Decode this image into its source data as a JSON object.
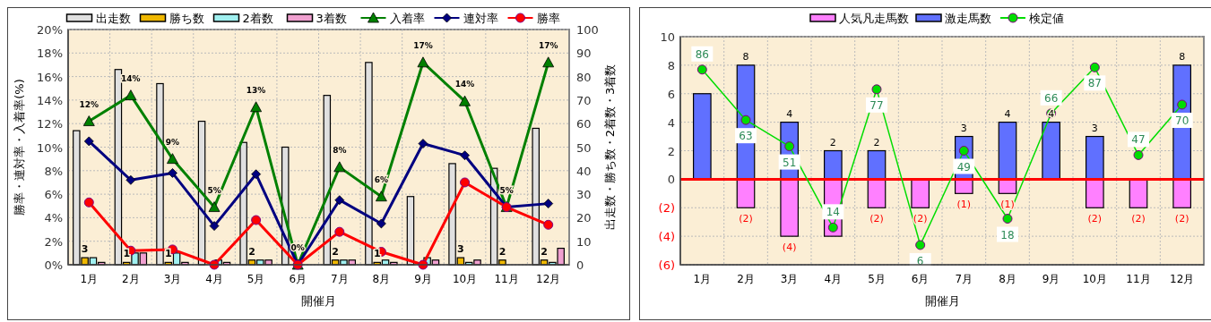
{
  "chart_data": [
    {
      "type": "bar",
      "xlabel": "開催月",
      "ylabel": "勝率・連対率・入着率(%)",
      "y2label": "出走数・勝ち数・2着数・3着数",
      "categories": [
        "1月",
        "2月",
        "3月",
        "4月",
        "5月",
        "6月",
        "7月",
        "8月",
        "9月",
        "10月",
        "11月",
        "12月"
      ],
      "series": [
        {
          "name": "出走数",
          "axis": "y2",
          "color": "#e0e0e0",
          "values": [
            57,
            83,
            77,
            61,
            52,
            50,
            72,
            86,
            29,
            43,
            41,
            58
          ]
        },
        {
          "name": "勝ち数",
          "axis": "y2",
          "color": "#f0b800",
          "values": [
            3,
            1,
            1,
            0,
            2,
            0,
            2,
            1,
            0,
            3,
            2,
            2
          ],
          "value_labels": [
            "3",
            "1",
            "1",
            null,
            "2",
            null,
            "2",
            "1",
            null,
            "3",
            "2",
            "2"
          ]
        },
        {
          "name": "2着数",
          "axis": "y2",
          "color": "#a0f0f0",
          "values": [
            3,
            5,
            5,
            2,
            2,
            0,
            2,
            2,
            3,
            1,
            0,
            1
          ]
        },
        {
          "name": "3着数",
          "axis": "y2",
          "color": "#f0a0d0",
          "values": [
            1,
            5,
            1,
            1,
            2,
            0,
            2,
            1,
            2,
            2,
            0,
            7
          ]
        },
        {
          "name": "入着率",
          "type": "line",
          "color": "#008000",
          "marker": "triangle",
          "values": [
            12.2,
            14.4,
            9.0,
            4.9,
            13.4,
            0,
            8.3,
            5.8,
            17.2,
            13.9,
            4.9,
            17.2
          ],
          "value_labels": [
            "12%",
            "14%",
            "9%",
            "5%",
            "13%",
            "0%",
            "8%",
            "6%",
            "17%",
            "14%",
            "5%",
            "17%"
          ]
        },
        {
          "name": "連対率",
          "type": "line",
          "color": "#000080",
          "marker": "diamond",
          "values": [
            10.5,
            7.2,
            7.8,
            3.3,
            7.7,
            0,
            5.5,
            3.5,
            10.3,
            9.3,
            4.9,
            5.2
          ]
        },
        {
          "name": "勝率",
          "type": "line",
          "color": "#ff0000",
          "marker": "circle",
          "values": [
            5.3,
            1.2,
            1.3,
            0,
            3.8,
            0,
            2.8,
            1.1,
            0,
            7.0,
            4.9,
            3.4
          ]
        }
      ],
      "ylim": [
        0,
        20
      ],
      "yticks": [
        {
          "value": 0,
          "label": "0%"
        },
        {
          "value": 2,
          "label": "2%"
        },
        {
          "value": 4,
          "label": "4%"
        },
        {
          "value": 6,
          "label": "6%"
        },
        {
          "value": 8,
          "label": "8%"
        },
        {
          "value": 10,
          "label": "10%"
        },
        {
          "value": 12,
          "label": "12%"
        },
        {
          "value": 14,
          "label": "14%"
        },
        {
          "value": 16,
          "label": "16%"
        },
        {
          "value": 18,
          "label": "18%"
        },
        {
          "value": 20,
          "label": "20%"
        }
      ],
      "y2lim": [
        0,
        100
      ],
      "y2ticks": [
        0,
        10,
        20,
        30,
        40,
        50,
        60,
        70,
        80,
        90,
        100
      ],
      "grid": true,
      "legend": "top"
    },
    {
      "type": "bar",
      "xlabel": "開催月",
      "categories": [
        "1月",
        "2月",
        "3月",
        "4月",
        "5月",
        "6月",
        "7月",
        "8月",
        "9月",
        "10月",
        "11月",
        "12月"
      ],
      "stacked": true,
      "series": [
        {
          "name": "人気凡走馬数",
          "color": "#ff80ff",
          "values": [
            0,
            -2,
            -4,
            -4,
            -2,
            -2,
            -1,
            -1,
            0,
            -2,
            -2,
            -2
          ],
          "value_labels": [
            null,
            "(2)",
            "(4)",
            null,
            "(2)",
            "(2)",
            "(1)",
            "(1)",
            null,
            "(2)",
            "(2)",
            "(2)"
          ]
        },
        {
          "name": "激走馬数",
          "color": "#6070ff",
          "values": [
            6,
            8,
            4,
            2,
            2,
            0,
            3,
            4,
            4,
            3,
            0,
            8
          ],
          "value_labels": [
            null,
            "8",
            "4",
            "2",
            "2",
            null,
            "3",
            "4",
            "4",
            "3",
            null,
            "8"
          ]
        },
        {
          "name": "検定値",
          "type": "line",
          "axis": "y2",
          "color": "#00dd00",
          "marker": "circle",
          "values": [
            86,
            63,
            51,
            14,
            77,
            6,
            49,
            18,
            66,
            87,
            47,
            70
          ],
          "value_labels": [
            "86",
            "63",
            "51",
            "14",
            "77",
            "6",
            "49",
            "18",
            "66",
            "87",
            "47",
            "70"
          ]
        }
      ],
      "ylim": [
        -6,
        10
      ],
      "yticks": [
        {
          "value": -6,
          "label": "(6)"
        },
        {
          "value": -4,
          "label": "(4)"
        },
        {
          "value": -2,
          "label": "(2)"
        },
        0,
        2,
        4,
        6,
        8,
        10
      ],
      "y2lim": [
        -3,
        101
      ],
      "ref_lines": [
        {
          "axis": "y",
          "value": 0,
          "color": "#ff0000"
        }
      ],
      "grid": true,
      "legend": "top"
    }
  ]
}
